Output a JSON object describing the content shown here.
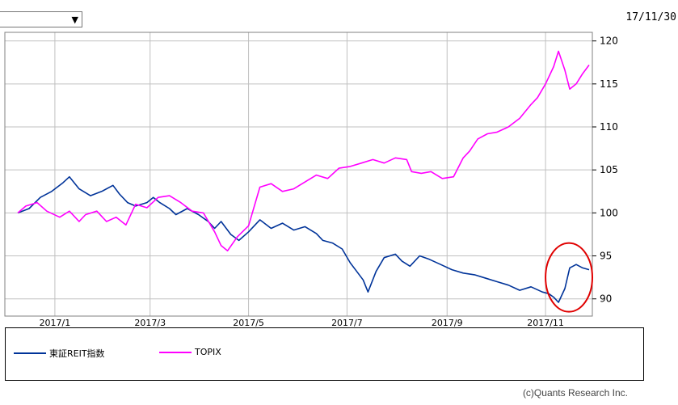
{
  "header": {
    "date_label": "17/11/30",
    "period_select_icon": "chevron-down-icon"
  },
  "footer": {
    "copyright": "(c)Quants Research Inc."
  },
  "chart_data": {
    "type": "line",
    "title": "",
    "xlabel": "",
    "ylabel": "",
    "x_range": [
      "2016-12-01",
      "2017-11-30"
    ],
    "ylim": [
      88,
      121
    ],
    "yticks": [
      90,
      95,
      100,
      105,
      110,
      115,
      120
    ],
    "xticks": [
      {
        "date": "2017-01-01",
        "label": "2017/1"
      },
      {
        "date": "2017-03-01",
        "label": "2017/3"
      },
      {
        "date": "2017-05-01",
        "label": "2017/5"
      },
      {
        "date": "2017-07-01",
        "label": "2017/7"
      },
      {
        "date": "2017-09-01",
        "label": "2017/9"
      },
      {
        "date": "2017-11-01",
        "label": "2017/11"
      }
    ],
    "grid": true,
    "legend_position": "bottom",
    "highlight": {
      "shape": "ellipse",
      "color": "#e00000",
      "x_range": [
        "2017-11-01",
        "2017-11-30"
      ],
      "y_range": [
        88.5,
        96.5
      ]
    },
    "series": [
      {
        "name": "東証REIT指数",
        "color": "#003399",
        "points": [
          [
            "2016-12-09",
            100.0
          ],
          [
            "2016-12-16",
            100.5
          ],
          [
            "2016-12-23",
            101.8
          ],
          [
            "2016-12-30",
            102.5
          ],
          [
            "2017-01-06",
            103.5
          ],
          [
            "2017-01-10",
            104.2
          ],
          [
            "2017-01-16",
            102.8
          ],
          [
            "2017-01-23",
            102.0
          ],
          [
            "2017-01-30",
            102.5
          ],
          [
            "2017-02-06",
            103.2
          ],
          [
            "2017-02-10",
            102.2
          ],
          [
            "2017-02-15",
            101.2
          ],
          [
            "2017-02-20",
            100.8
          ],
          [
            "2017-02-27",
            101.2
          ],
          [
            "2017-03-03",
            101.8
          ],
          [
            "2017-03-07",
            101.2
          ],
          [
            "2017-03-13",
            100.5
          ],
          [
            "2017-03-17",
            99.8
          ],
          [
            "2017-03-24",
            100.5
          ],
          [
            "2017-03-31",
            99.8
          ],
          [
            "2017-04-06",
            99.0
          ],
          [
            "2017-04-10",
            98.2
          ],
          [
            "2017-04-14",
            99.0
          ],
          [
            "2017-04-20",
            97.5
          ],
          [
            "2017-04-25",
            96.8
          ],
          [
            "2017-05-01",
            97.8
          ],
          [
            "2017-05-08",
            99.2
          ],
          [
            "2017-05-15",
            98.2
          ],
          [
            "2017-05-22",
            98.8
          ],
          [
            "2017-05-29",
            98.0
          ],
          [
            "2017-06-05",
            98.4
          ],
          [
            "2017-06-12",
            97.6
          ],
          [
            "2017-06-16",
            96.8
          ],
          [
            "2017-06-22",
            96.5
          ],
          [
            "2017-06-28",
            95.8
          ],
          [
            "2017-07-03",
            94.2
          ],
          [
            "2017-07-07",
            93.2
          ],
          [
            "2017-07-11",
            92.2
          ],
          [
            "2017-07-14",
            90.8
          ],
          [
            "2017-07-19",
            93.2
          ],
          [
            "2017-07-24",
            94.8
          ],
          [
            "2017-07-31",
            95.2
          ],
          [
            "2017-08-04",
            94.4
          ],
          [
            "2017-08-09",
            93.8
          ],
          [
            "2017-08-15",
            95.0
          ],
          [
            "2017-08-21",
            94.6
          ],
          [
            "2017-08-28",
            94.0
          ],
          [
            "2017-09-04",
            93.4
          ],
          [
            "2017-09-11",
            93.0
          ],
          [
            "2017-09-18",
            92.8
          ],
          [
            "2017-09-25",
            92.4
          ],
          [
            "2017-10-02",
            92.0
          ],
          [
            "2017-10-09",
            91.6
          ],
          [
            "2017-10-16",
            91.0
          ],
          [
            "2017-10-23",
            91.4
          ],
          [
            "2017-10-30",
            90.8
          ],
          [
            "2017-11-03",
            90.6
          ],
          [
            "2017-11-06",
            90.2
          ],
          [
            "2017-11-09",
            89.6
          ],
          [
            "2017-11-13",
            91.2
          ],
          [
            "2017-11-16",
            93.6
          ],
          [
            "2017-11-20",
            94.0
          ],
          [
            "2017-11-24",
            93.6
          ],
          [
            "2017-11-28",
            93.4
          ]
        ]
      },
      {
        "name": "TOPIX",
        "color": "#ff00ff",
        "points": [
          [
            "2016-12-09",
            100.0
          ],
          [
            "2016-12-14",
            100.8
          ],
          [
            "2016-12-21",
            101.2
          ],
          [
            "2016-12-27",
            100.2
          ],
          [
            "2017-01-04",
            99.5
          ],
          [
            "2017-01-10",
            100.2
          ],
          [
            "2017-01-16",
            99.0
          ],
          [
            "2017-01-20",
            99.8
          ],
          [
            "2017-01-27",
            100.2
          ],
          [
            "2017-02-02",
            99.0
          ],
          [
            "2017-02-08",
            99.5
          ],
          [
            "2017-02-14",
            98.6
          ],
          [
            "2017-02-20",
            101.0
          ],
          [
            "2017-02-27",
            100.6
          ],
          [
            "2017-03-06",
            101.8
          ],
          [
            "2017-03-13",
            102.0
          ],
          [
            "2017-03-20",
            101.2
          ],
          [
            "2017-03-27",
            100.2
          ],
          [
            "2017-04-03",
            100.0
          ],
          [
            "2017-04-10",
            97.8
          ],
          [
            "2017-04-14",
            96.2
          ],
          [
            "2017-04-18",
            95.6
          ],
          [
            "2017-04-24",
            97.2
          ],
          [
            "2017-05-01",
            98.5
          ],
          [
            "2017-05-08",
            103.0
          ],
          [
            "2017-05-15",
            103.4
          ],
          [
            "2017-05-22",
            102.5
          ],
          [
            "2017-05-29",
            102.8
          ],
          [
            "2017-06-05",
            103.6
          ],
          [
            "2017-06-12",
            104.4
          ],
          [
            "2017-06-19",
            104.0
          ],
          [
            "2017-06-26",
            105.2
          ],
          [
            "2017-07-03",
            105.4
          ],
          [
            "2017-07-10",
            105.8
          ],
          [
            "2017-07-17",
            106.2
          ],
          [
            "2017-07-24",
            105.8
          ],
          [
            "2017-07-31",
            106.4
          ],
          [
            "2017-08-07",
            106.2
          ],
          [
            "2017-08-10",
            104.8
          ],
          [
            "2017-08-16",
            104.6
          ],
          [
            "2017-08-22",
            104.8
          ],
          [
            "2017-08-29",
            104.0
          ],
          [
            "2017-09-05",
            104.2
          ],
          [
            "2017-09-11",
            106.4
          ],
          [
            "2017-09-15",
            107.2
          ],
          [
            "2017-09-20",
            108.6
          ],
          [
            "2017-09-26",
            109.2
          ],
          [
            "2017-10-02",
            109.4
          ],
          [
            "2017-10-09",
            110.0
          ],
          [
            "2017-10-16",
            111.0
          ],
          [
            "2017-10-23",
            112.6
          ],
          [
            "2017-10-27",
            113.4
          ],
          [
            "2017-11-01",
            115.0
          ],
          [
            "2017-11-06",
            117.0
          ],
          [
            "2017-11-09",
            118.8
          ],
          [
            "2017-11-13",
            116.6
          ],
          [
            "2017-11-16",
            114.4
          ],
          [
            "2017-11-20",
            115.0
          ],
          [
            "2017-11-24",
            116.2
          ],
          [
            "2017-11-28",
            117.2
          ]
        ]
      }
    ]
  }
}
